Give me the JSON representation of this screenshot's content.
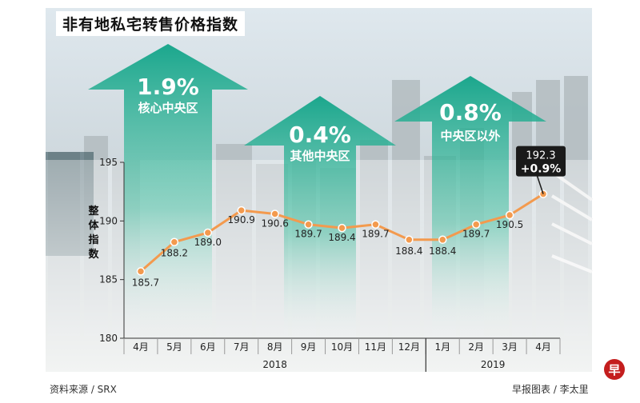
{
  "title": "非有地私宅转售价格指数",
  "source": "资料来源 / SRX",
  "credit": "早报图表 / 李太里",
  "logo_text": "早",
  "colors": {
    "line": "#f39a4e",
    "arrow": "#1aa58a",
    "axis": "#333333",
    "callout": "#1a1a1a"
  },
  "chart_data": {
    "type": "line",
    "title": "非有地私宅转售价格指数",
    "ylabel": "整体指数",
    "xlabel": "",
    "ylim": [
      180,
      195
    ],
    "yticks": [
      180,
      185,
      190,
      195
    ],
    "categories": [
      "4月",
      "5月",
      "6月",
      "7月",
      "8月",
      "9月",
      "10月",
      "11月",
      "12月",
      "1月",
      "2月",
      "3月",
      "4月"
    ],
    "values": [
      185.7,
      188.2,
      189.0,
      190.9,
      190.6,
      189.7,
      189.4,
      189.7,
      188.4,
      188.4,
      189.7,
      190.5,
      192.3
    ],
    "data_labels": [
      "185.7",
      "188.2",
      "189.0",
      "190.9",
      "190.6",
      "189.7",
      "189.4",
      "189.7",
      "188.4",
      "188.4",
      "189.7",
      "190.5",
      "192.3"
    ],
    "year_groups": [
      {
        "label": "2018",
        "count": 9
      },
      {
        "label": "2019",
        "count": 4
      }
    ],
    "callout": {
      "value": "192.3",
      "change": "+0.9%"
    },
    "annotations": [
      {
        "value": "1.9%",
        "label": "核心中央区"
      },
      {
        "value": "0.4%",
        "label": "其他中央区"
      },
      {
        "value": "0.8%",
        "label": "中央区以外"
      }
    ]
  }
}
